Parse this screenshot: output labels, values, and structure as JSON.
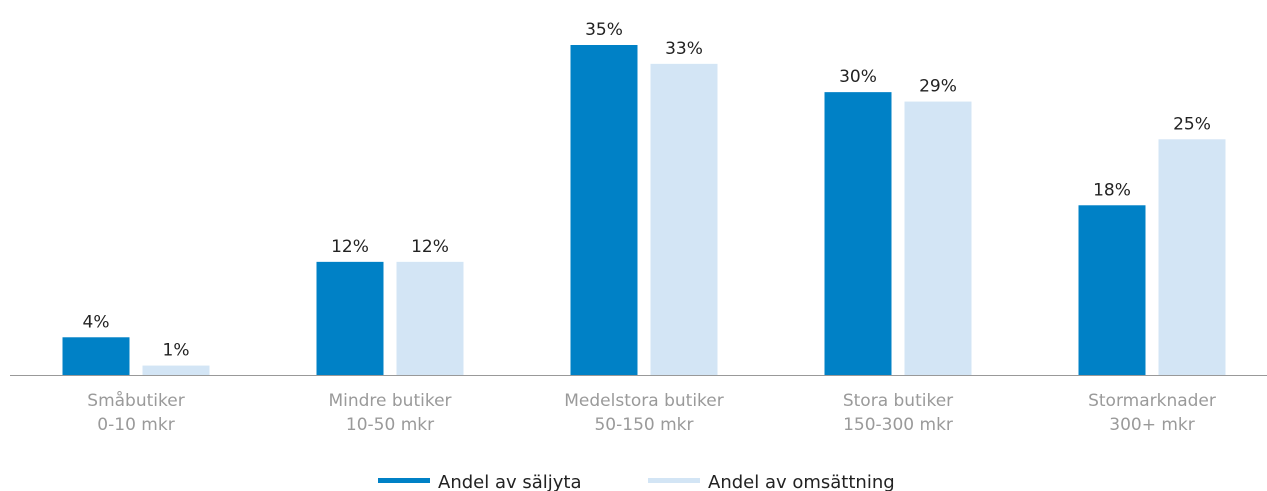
{
  "chart_data": {
    "type": "bar",
    "categories": [
      [
        "Småbutiker",
        "0-10 mkr"
      ],
      [
        "Mindre butiker",
        "10-50 mkr"
      ],
      [
        "Medelstora butiker",
        "50-150 mkr"
      ],
      [
        "Stora butiker",
        "150-300 mkr"
      ],
      [
        "Stormarknader",
        "300+ mkr"
      ]
    ],
    "series": [
      {
        "name": "Andel av säljyta",
        "color": "#0081c6",
        "values": [
          4,
          12,
          35,
          30,
          18
        ],
        "value_labels": [
          "4%",
          "12%",
          "35%",
          "30%",
          "18%"
        ]
      },
      {
        "name": "Andel av omsättning",
        "color": "#d3e5f5",
        "values": [
          1,
          12,
          33,
          29,
          25
        ],
        "value_labels": [
          "1%",
          "12%",
          "33%",
          "29%",
          "25%"
        ]
      }
    ],
    "ylim": [
      0,
      35
    ]
  }
}
